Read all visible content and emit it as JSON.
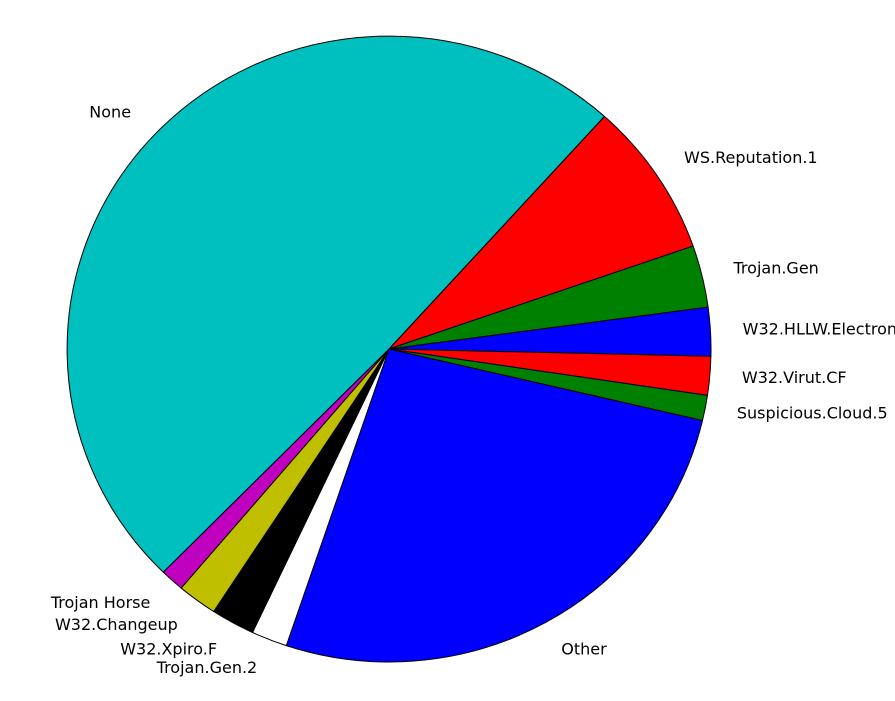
{
  "chart_data": {
    "type": "pie",
    "title": "",
    "start_angle_deg": 48,
    "direction": "clockwise",
    "slices": [
      {
        "label": "WS.Reputation.1",
        "value": 8.0,
        "color": "#ff0000"
      },
      {
        "label": "Trojan.Gen",
        "value": 3.2,
        "color": "#008000"
      },
      {
        "label": "W32.HLLW.Electron",
        "value": 2.5,
        "color": "#0000ff"
      },
      {
        "label": "W32.Virut.CF",
        "value": 2.0,
        "color": "#ff0000"
      },
      {
        "label": "Suspicious.Cloud.5",
        "value": 1.3,
        "color": "#008000"
      },
      {
        "label": "Other",
        "value": 26.5,
        "color": "#0000ff"
      },
      {
        "label": "Trojan.Gen.2",
        "value": 1.8,
        "color": "#ffffff"
      },
      {
        "label": "W32.Xpiro.F",
        "value": 2.2,
        "color": "#000000"
      },
      {
        "label": "W32.Changeup",
        "value": 2.0,
        "color": "#bfbf00"
      },
      {
        "label": "Trojan Horse",
        "value": 1.2,
        "color": "#bf00bf"
      },
      {
        "label": "None",
        "value": 49.3,
        "color": "#00bfbf"
      }
    ]
  }
}
